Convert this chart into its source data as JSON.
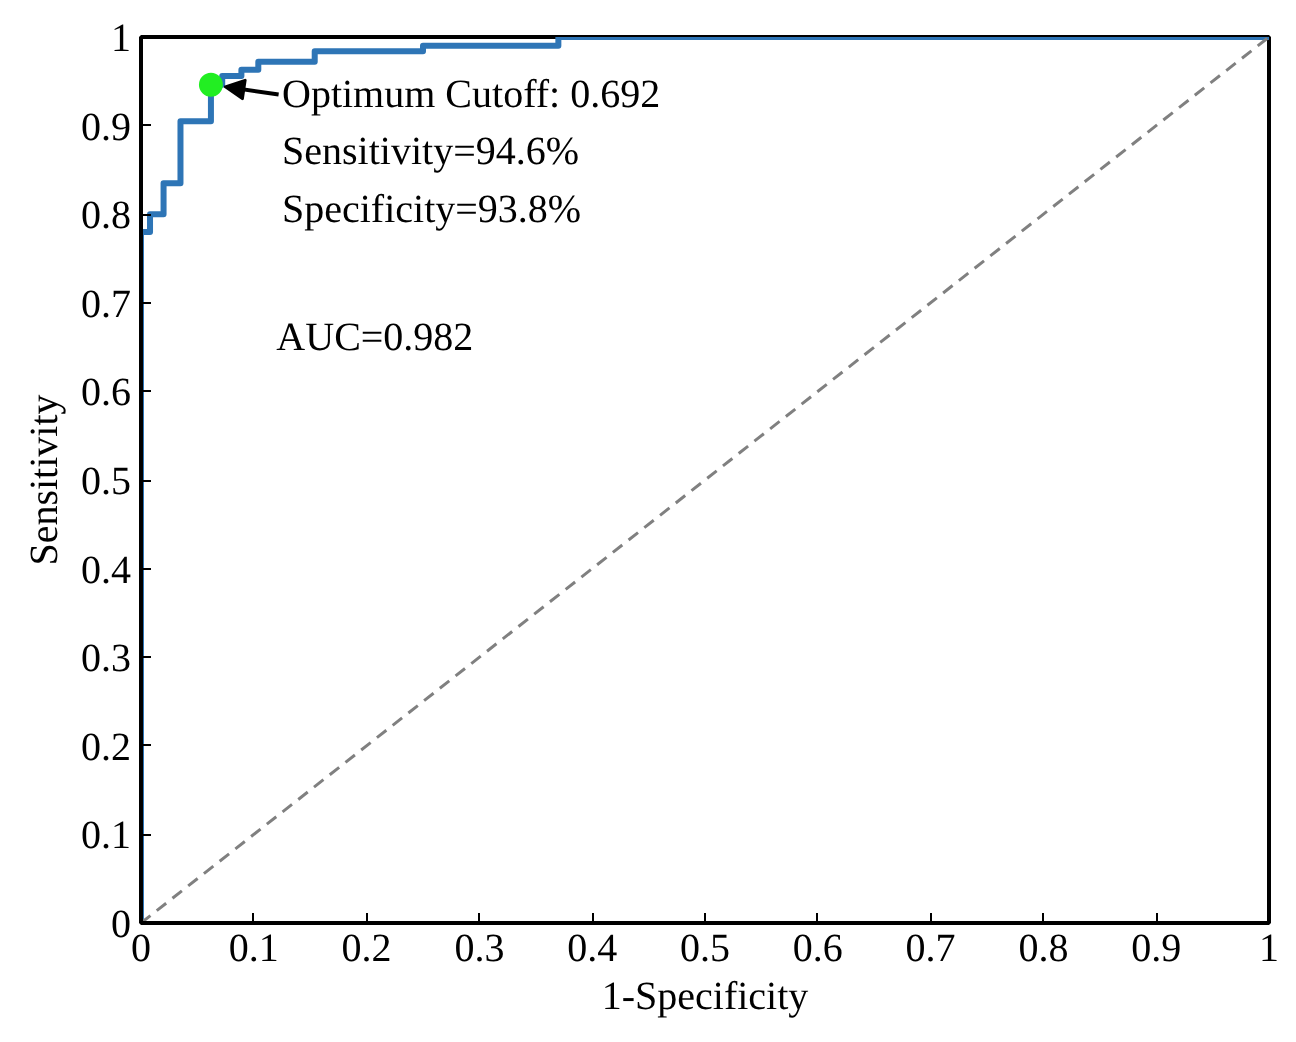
{
  "chart_data": {
    "type": "step",
    "xlabel": "1-Specificity",
    "ylabel": "Sensitivity",
    "xlim": [
      0,
      1
    ],
    "ylim": [
      0,
      1
    ],
    "xticks": [
      0,
      0.1,
      0.2,
      0.3,
      0.4,
      0.5,
      0.6,
      0.7,
      0.8,
      0.9,
      1
    ],
    "yticks": [
      0,
      0.1,
      0.2,
      0.3,
      0.4,
      0.5,
      0.6,
      0.7,
      0.8,
      0.9,
      1
    ],
    "grid": false,
    "series": [
      {
        "color": "#2e75b6",
        "x": [
          0,
          0,
          0.008,
          0.008,
          0.02,
          0.02,
          0.035,
          0.035,
          0.062,
          0.062,
          0.072,
          0.072,
          0.089,
          0.089,
          0.104,
          0.104,
          0.154,
          0.154,
          0.25,
          0.25,
          0.37,
          0.37,
          1
        ],
        "values": [
          0,
          0.78,
          0.78,
          0.8,
          0.8,
          0.835,
          0.835,
          0.905,
          0.905,
          0.946,
          0.946,
          0.956,
          0.956,
          0.963,
          0.963,
          0.972,
          0.972,
          0.984,
          0.984,
          0.99,
          0.99,
          1,
          1
        ]
      },
      {
        "type": "line",
        "color": "#808080",
        "line_style": "dashed",
        "x": [
          0,
          1
        ],
        "values": [
          0,
          1
        ]
      },
      {
        "type": "scatter",
        "color": "#22ee22",
        "marker": "circle",
        "x": [
          0.062
        ],
        "values": [
          0.946
        ]
      }
    ],
    "annotations": [
      {
        "text": "Optimum Cutoff: 0.692",
        "x": 0.062,
        "y": 0.946
      },
      "Sensitivity=94.6%",
      "Specificity=93.8%",
      "AUC=0.982"
    ]
  }
}
